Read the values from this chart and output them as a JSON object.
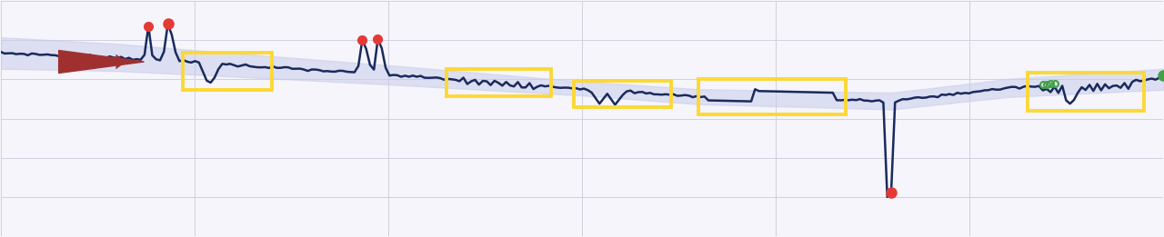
{
  "bg_color": "#f5f5fb",
  "line_color": "#1a2a5e",
  "band_color": "#c5cae9",
  "band_alpha": 0.5,
  "grid_color": "#d0d0e0",
  "red_dot_color": "#e53935",
  "green_dot_color": "#43a047",
  "yellow_rect_color": "#fdd835",
  "arrow_color": "#a03030",
  "figsize": [
    12.8,
    2.61
  ],
  "dpi": 100,
  "xlim": [
    0,
    300
  ],
  "ylim": [
    -1.5,
    1.2
  ]
}
